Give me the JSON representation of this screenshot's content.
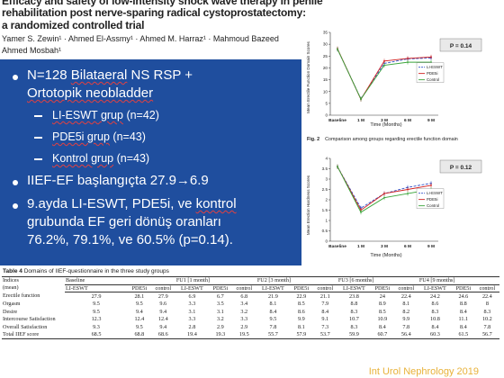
{
  "paper": {
    "title_line1": "Efficacy and safety of low-intensity shock wave therapy in penile",
    "title_line2": "rehabilitation post nerve-sparing radical cystoprostatectomy:",
    "title_line3": "a randomized controlled trial",
    "authors_line1": "Yamer S. Zewin¹ · Ahmed El-Assmy¹ · Ahmed M. Harraz¹ · Mahmoud Bazeed",
    "authors_line2": "Ahmed Mosbah¹"
  },
  "bullets": {
    "b1_part1": "N=128 ",
    "b1_underlined": "Bilataeral",
    "b1_part2": " NS RSP +",
    "b1_line2": "Ortotopik neobladder",
    "sub1_underlined": "LI-ESWT grup",
    "sub1_rest": " (n=42)",
    "sub2_underlined": "PDE5i grup",
    "sub2_rest": " (n=43)",
    "sub3_underlined": "Kontrol grup",
    "sub3_rest": " (n=43)",
    "b2": "IIEF-EF başlangıçta 27.9→6.9",
    "b3_part1": "9.ayda LI-ESWT, PDE5i, ve ",
    "b3_underlined": "kontrol",
    "b3_line2": "grubunda EF geri dönüş oranları",
    "b3_line3": "76.2%, 79.1%, ve 60.5% (p=0.14)."
  },
  "figure1": {
    "ylabel": "Mean Erectile Function Domain Scores",
    "xlabel": "Time (Months)",
    "p_value": "P = 0.14",
    "caption_bold": "Fig. 2",
    "caption_text": "Comparison among groups regarding erectile function domain"
  },
  "figure2": {
    "ylabel": "Mean Erection Hardness Scores",
    "xlabel": "Time (Months)",
    "p_value": "P = 0.12"
  },
  "chart_data": [
    {
      "type": "line",
      "categories": [
        "Baseline",
        "1 M",
        "3 M",
        "6 M",
        "9 M"
      ],
      "ylim": [
        0,
        35
      ],
      "yticks": [
        0,
        5,
        10,
        15,
        20,
        25,
        30,
        35
      ],
      "series": [
        {
          "name": "LI-ESWT",
          "color": "#3050c8",
          "values": [
            27.9,
            6.9,
            21.9,
            23.8,
            24.2
          ]
        },
        {
          "name": "PDE5i",
          "color": "#d02020",
          "values": [
            28.1,
            6.7,
            22.9,
            24.0,
            24.6
          ]
        },
        {
          "name": "Control",
          "color": "#3aa53a",
          "values": [
            27.9,
            6.8,
            21.1,
            22.4,
            22.4
          ]
        }
      ],
      "legend_position": "center-right"
    },
    {
      "type": "line",
      "categories": [
        "Baseline",
        "1 M",
        "3 M",
        "6 M",
        "9 M"
      ],
      "ylim": [
        0,
        4
      ],
      "yticks": [
        0,
        0.5,
        1,
        1.5,
        2,
        2.5,
        3,
        3.5,
        4
      ],
      "series": [
        {
          "name": "LI-ESWT",
          "color": "#3050c8",
          "values": [
            3.6,
            1.6,
            2.3,
            2.6,
            2.8
          ]
        },
        {
          "name": "PDE5i",
          "color": "#d02020",
          "values": [
            3.6,
            1.5,
            2.3,
            2.5,
            2.7
          ]
        },
        {
          "name": "Control",
          "color": "#3aa53a",
          "values": [
            3.6,
            1.4,
            2.1,
            2.3,
            2.5
          ]
        }
      ],
      "legend_position": "center-right"
    }
  ],
  "table": {
    "caption_bold": "Table 4",
    "caption_text": "Domains of IIEF-questionnaire in the three study groups",
    "row_header": "Indices\n(mean)",
    "groups": [
      "Baseline",
      "FU1 [1 month]",
      "FU2 [3 month]",
      "FU3 [6 months]",
      "FU4 [9 months]"
    ],
    "subcols": [
      "LI-ESWT",
      "PDE5i",
      "control"
    ],
    "rows": [
      {
        "label": "Erectile function",
        "values": [
          "27.9",
          "28.1",
          "27.9",
          "6.9",
          "6.7",
          "6.8",
          "21.9",
          "22.9",
          "21.1",
          "23.8",
          "24",
          "22.4",
          "24.2",
          "24.6",
          "22.4"
        ]
      },
      {
        "label": "Orgasm",
        "values": [
          "9.5",
          "9.5",
          "9.6",
          "3.3",
          "3.5",
          "3.4",
          "8.1",
          "8.5",
          "7.9",
          "8.8",
          "8.9",
          "8.1",
          "8.6",
          "8.8",
          "8"
        ]
      },
      {
        "label": "Desire",
        "values": [
          "9.5",
          "9.4",
          "9.4",
          "3.1",
          "3.1",
          "3.2",
          "8.4",
          "8.6",
          "8.4",
          "8.3",
          "8.5",
          "8.2",
          "8.3",
          "8.4",
          "8.3"
        ]
      },
      {
        "label": "Intercourse Satisfaction",
        "values": [
          "12.3",
          "12.4",
          "12.4",
          "3.3",
          "3.2",
          "3.3",
          "9.5",
          "9.9",
          "9.1",
          "10.7",
          "10.9",
          "9.9",
          "10.8",
          "11.1",
          "10.2"
        ]
      },
      {
        "label": "Overall Satisfaction",
        "values": [
          "9.3",
          "9.5",
          "9.4",
          "2.8",
          "2.9",
          "2.9",
          "7.8",
          "8.1",
          "7.3",
          "8.3",
          "8.4",
          "7.8",
          "8.4",
          "8.4",
          "7.8"
        ]
      },
      {
        "label": "Total IIEF score",
        "values": [
          "68.5",
          "68.8",
          "68.6",
          "19.4",
          "19.3",
          "19.5",
          "55.7",
          "57.9",
          "53.7",
          "59.9",
          "60.7",
          "56.4",
          "60.3",
          "61.5",
          "56.7"
        ]
      }
    ]
  },
  "citation": "Int Urol Nephrology 2019",
  "colors": {
    "panel_blue": "#1f4e9e",
    "citation_gold": "#e8b23a",
    "underline_red": "#e34040"
  }
}
